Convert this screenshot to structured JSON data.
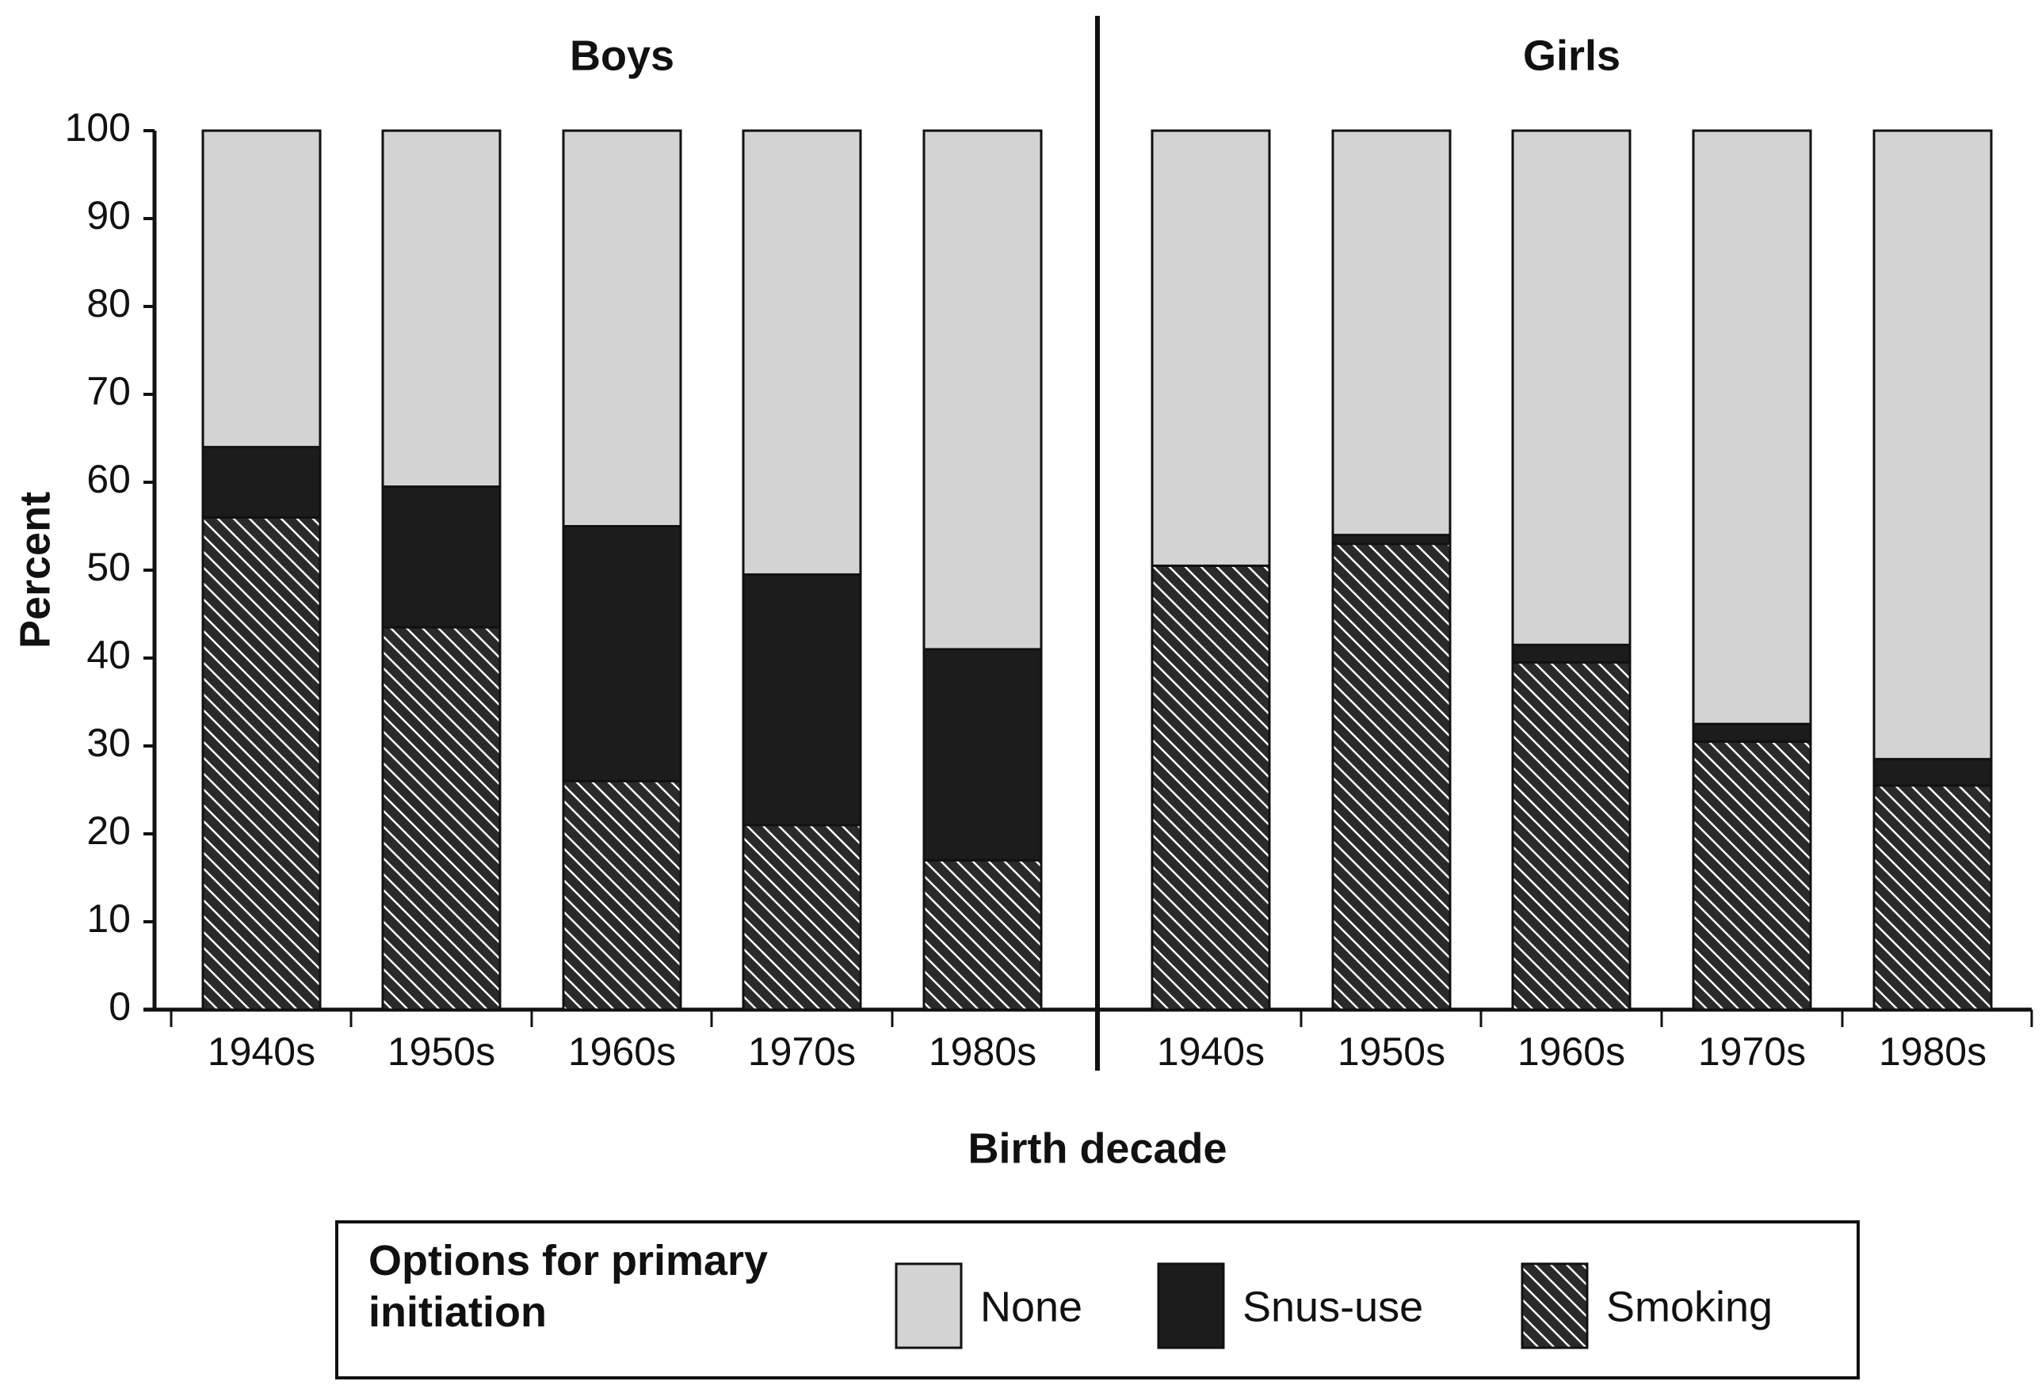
{
  "chart_data": {
    "type": "stacked-bar",
    "groups": [
      "Boys",
      "Girls"
    ],
    "categories": [
      "1940s",
      "1950s",
      "1960s",
      "1970s",
      "1980s",
      "1940s",
      "1950s",
      "1960s",
      "1970s",
      "1980s"
    ],
    "series": [
      {
        "name": "Smoking",
        "color": "#2a2a2a",
        "hatch": true,
        "values": [
          56,
          43.5,
          26,
          21,
          17,
          50.5,
          53,
          39.5,
          30.5,
          25.5
        ]
      },
      {
        "name": "Snus-use",
        "color": "#1c1c1c",
        "values": [
          8,
          16,
          29,
          28.5,
          24,
          0,
          1,
          2,
          2,
          3
        ]
      },
      {
        "name": "None",
        "color": "#d3d3d3",
        "values": [
          36,
          40.5,
          45,
          50.5,
          59,
          49.5,
          46,
          58.5,
          67.5,
          71.5
        ]
      }
    ],
    "y_label": "Percent",
    "x_label": "Birth decade",
    "legend_title": "Options for primary initiation",
    "ylim": [
      0,
      100
    ],
    "yticks": [
      0,
      10,
      20,
      30,
      40,
      50,
      60,
      70,
      80,
      90,
      100
    ]
  }
}
